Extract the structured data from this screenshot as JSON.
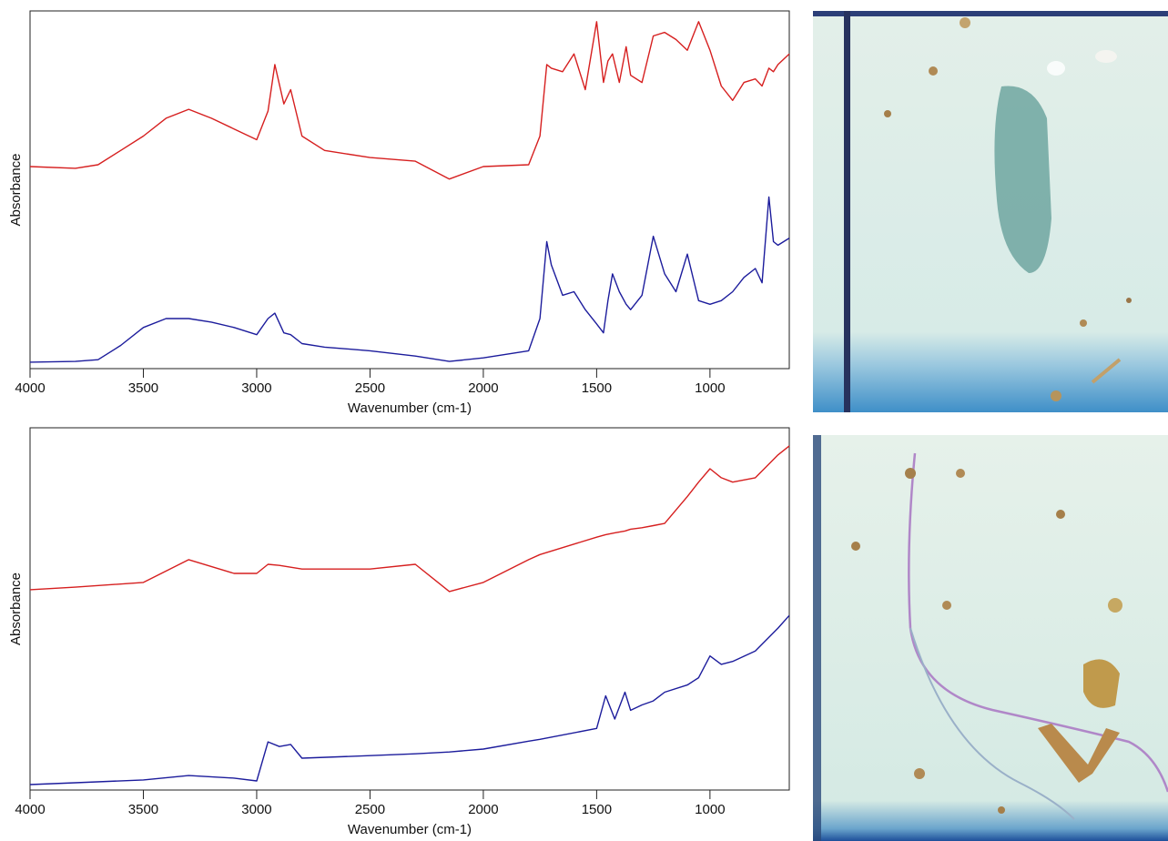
{
  "chart_data": [
    {
      "type": "line",
      "y_label": "Absorbance",
      "x_label": "Wavenumber (cm-1)",
      "xlim": [
        4000,
        650
      ],
      "ylim": [
        0,
        100
      ],
      "xticks": [
        4000,
        3500,
        3000,
        2500,
        2000,
        1500,
        1000
      ],
      "x": [
        4000,
        3800,
        3700,
        3600,
        3500,
        3400,
        3300,
        3200,
        3100,
        3000,
        2950,
        2920,
        2880,
        2850,
        2800,
        2700,
        2500,
        2300,
        2150,
        2000,
        1800,
        1750,
        1720,
        1700,
        1650,
        1600,
        1550,
        1500,
        1470,
        1450,
        1430,
        1400,
        1370,
        1350,
        1300,
        1250,
        1200,
        1150,
        1100,
        1050,
        1000,
        950,
        900,
        850,
        800,
        770,
        740,
        720,
        700,
        650
      ],
      "series": [
        {
          "color": "#d61f1f",
          "values": [
            56.5,
            56,
            57,
            61,
            65,
            70,
            72.5,
            70,
            67,
            64,
            72,
            85,
            74,
            78,
            65,
            61,
            59,
            58,
            53,
            56.5,
            57,
            65,
            85,
            84,
            83,
            88,
            78,
            97,
            80,
            86,
            88,
            80,
            90,
            82,
            80,
            93,
            94,
            92,
            89,
            97,
            89,
            79,
            75,
            80,
            81,
            79,
            84,
            83,
            85,
            88
          ]
        },
        {
          "color": "#1c1c9c",
          "values": [
            1.8,
            2,
            2.5,
            6.5,
            11.5,
            14,
            14,
            13,
            11.5,
            9.5,
            14,
            15.5,
            10,
            9.5,
            7,
            6,
            5,
            3.5,
            2,
            3,
            5,
            14,
            35.5,
            29,
            20.5,
            21.5,
            16.5,
            12.5,
            10,
            19,
            26.5,
            21.5,
            18,
            16.5,
            20.5,
            37,
            26.5,
            21.5,
            32,
            19,
            18,
            19,
            21.5,
            25.5,
            28,
            24,
            48,
            35.5,
            34.5,
            36.5
          ]
        }
      ]
    },
    {
      "type": "line",
      "y_label": "Absorbance",
      "x_label": "Wavenumber (cm-1)",
      "xlim": [
        4000,
        650
      ],
      "ylim": [
        0,
        100
      ],
      "xticks": [
        4000,
        3500,
        3000,
        2500,
        2000,
        1500,
        1000
      ],
      "x": [
        4000,
        3800,
        3500,
        3300,
        3100,
        3000,
        2950,
        2900,
        2850,
        2800,
        2500,
        2300,
        2150,
        2000,
        1800,
        1750,
        1500,
        1460,
        1420,
        1375,
        1350,
        1300,
        1250,
        1200,
        1100,
        1050,
        1000,
        950,
        900,
        800,
        700,
        650
      ],
      "series": [
        {
          "color": "#d61f1f",
          "values": [
            55.3,
            56,
            57.3,
            63.6,
            59.8,
            59.8,
            62.3,
            62,
            61.5,
            61,
            61,
            62.3,
            54.8,
            57.3,
            63.6,
            65,
            69.8,
            70.5,
            71,
            71.5,
            72,
            72.4,
            73,
            73.6,
            81,
            85,
            88.7,
            86.2,
            85,
            86.2,
            92.5,
            95
          ]
        },
        {
          "color": "#1c1c9c",
          "values": [
            1.5,
            2,
            2.8,
            4,
            3.3,
            2.5,
            13.3,
            12,
            12.6,
            8.8,
            9.5,
            10,
            10.5,
            11.3,
            13.5,
            14,
            17,
            26,
            19.6,
            27,
            22,
            23.5,
            24.6,
            27,
            29,
            31,
            37,
            34.7,
            35.5,
            38.4,
            44.7,
            48.2
          ]
        }
      ]
    }
  ]
}
